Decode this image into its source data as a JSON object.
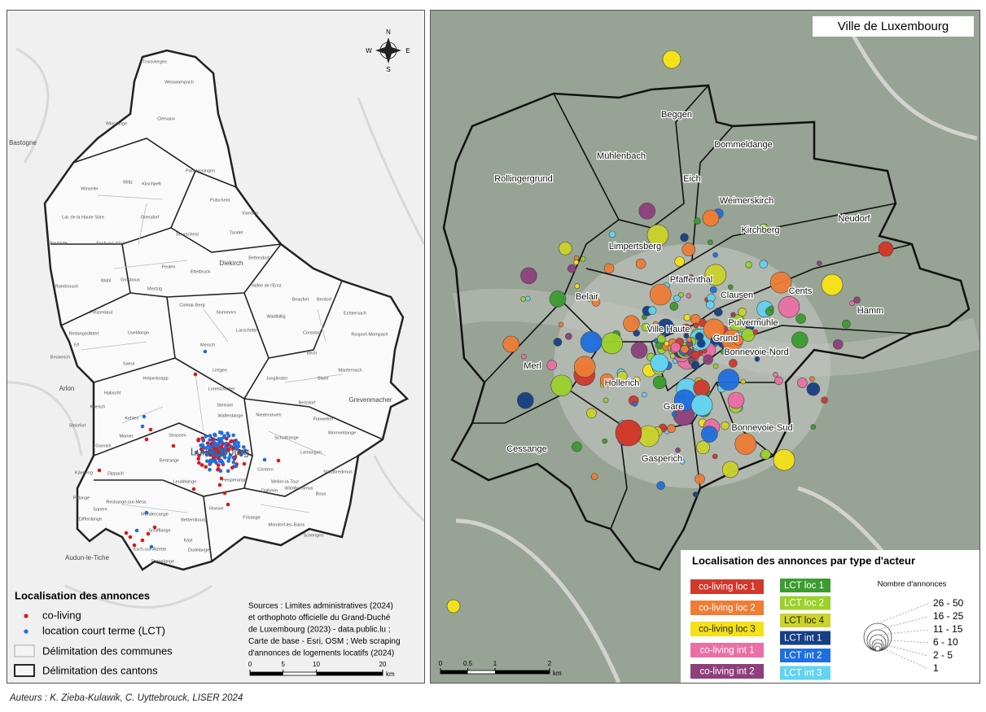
{
  "left_map": {
    "communes": [
      "Troisvierges",
      "Weiswampach",
      "Wincrange",
      "Clervaux",
      "Parc Hosingen",
      "Wiltz",
      "Kiischpelt",
      "Putscheid",
      "Vianden",
      "Tandel",
      "Winseler",
      "Lac de la Haute Sûre",
      "Goesdorf",
      "Boulaide",
      "Esch-sur-Sûre",
      "Bourscheid",
      "Feulen",
      "Ettelbruck",
      "Bettendorf",
      "Rambrouch",
      "Wahl",
      "Grosbous",
      "Mertzig",
      "Vallée de l'Ernz",
      "Beaufort",
      "Préizerdaul",
      "Colmar-Berg",
      "Nommern",
      "Waldbillig",
      "Berdorf",
      "Echternach",
      "Redange/Attert",
      "Useldange",
      "Larochette",
      "Consdorf",
      "Rosport-Mompach",
      "Ell",
      "Helperknapp",
      "Mersch",
      "Lintgen",
      "Lorentzweiler",
      "Bech",
      "Junglinster",
      "Manternach",
      "Biwer",
      "Saeul",
      "Beckerich",
      "Habscht",
      "Kehlen",
      "Steinsel",
      "Walferdange",
      "Niederanven",
      "Betzdorf",
      "Flaxweiler",
      "Koerich",
      "Steinfort",
      "Mamer",
      "Garnich",
      "Strassen",
      "Schuttrange",
      "Lenningen",
      "Wormeldange",
      "Käerjeng",
      "Dippach",
      "Bertrange",
      "Hesperange",
      "Contern",
      "Weiler-la-Tour",
      "Waldbredimus",
      "Stadtbredimus",
      "Sanem",
      "Reckange-sur-Mess",
      "Leudelange",
      "Roeser",
      "Bous",
      "Differdange",
      "Mondercange",
      "Bettembourg",
      "Frisange",
      "Dalheim",
      "Mondorf-les-Bains",
      "Schengen",
      "Pétange",
      "Schifflange",
      "Kayl",
      "Dudelange",
      "Esch-sur-Alzette",
      "Rumelange"
    ],
    "towns": [
      "Bastogne",
      "Arlon",
      "Audun-le-Tiche",
      "Grevenmacher",
      "Diekirch"
    ],
    "capital": "Luxembourg",
    "compass": {
      "north": "N",
      "south": "S",
      "east": "E",
      "west": "W"
    },
    "legend": {
      "title": "Localisation des annonces",
      "items": [
        {
          "label": "co-living",
          "color": "#d7191c"
        },
        {
          "label": "location court terme (LCT)",
          "color": "#1f6fe0"
        },
        {
          "label": "Délimitation des communes"
        },
        {
          "label": "Délimitation des cantons"
        }
      ]
    },
    "sources": [
      "Sources : Limites administratives (2024)",
      "et orthophoto officielle du Grand-Duché",
      "de Luxembourg (2023) - data.public.lu ;",
      "Carte de base - Esri, OSM ; Web scraping",
      "d'annonces de logements locatifs (2024)"
    ],
    "scale": {
      "ticks": [
        0,
        5,
        10,
        20
      ],
      "unit": "km"
    }
  },
  "right_map": {
    "title": "Ville de Luxembourg",
    "quarters": [
      "Beggen",
      "Dommeldange",
      "Mühlenbach",
      "Eich",
      "Rollingergrund",
      "Weimerskirch",
      "Kirchberg",
      "Neudorf",
      "Limpertsberg",
      "Pfaffenthal",
      "Clausen",
      "Cents",
      "Hamm",
      "Belair",
      "Pulvermühle",
      "Ville Haute",
      "Grund",
      "Bonnevoie-Nord",
      "Merl",
      "Hollerich",
      "Gare",
      "Bonnevoie-Sud",
      "Cessange",
      "Gasperich"
    ],
    "scale": {
      "ticks": [
        0,
        0.5,
        1,
        2
      ],
      "unit": "km"
    },
    "legend": {
      "title": "Localisation des annonces par type d'acteur",
      "coliving": [
        {
          "label": "co-living loc 1",
          "color": "#d0392b"
        },
        {
          "label": "co-living loc 2",
          "color": "#ee7d35"
        },
        {
          "label": "co-living loc 3",
          "color": "#f5e11a"
        },
        {
          "label": "co-living int 1",
          "color": "#ea6fa4"
        },
        {
          "label": "co-living int 2",
          "color": "#8e3f7c"
        }
      ],
      "lct": [
        {
          "label": "LCT loc 1",
          "color": "#3b9c2f"
        },
        {
          "label": "LCT loc 2",
          "color": "#9bd12a"
        },
        {
          "label": "LCT loc 4",
          "color": "#cbd32a"
        },
        {
          "label": "LCT int 1",
          "color": "#163f84"
        },
        {
          "label": "LCT int 2",
          "color": "#1f6fe0"
        },
        {
          "label": "LCT int 3",
          "color": "#63d3f0"
        }
      ],
      "size_title": "Nombre d'annonces",
      "size_classes": [
        "26 - 50",
        "16 - 25",
        "11 - 15",
        "6 - 10",
        "2 - 5",
        "1"
      ]
    }
  },
  "footer": "Auteurs : K. Zieba-Kulawik, C. Uyttebrouck, LISER 2024"
}
